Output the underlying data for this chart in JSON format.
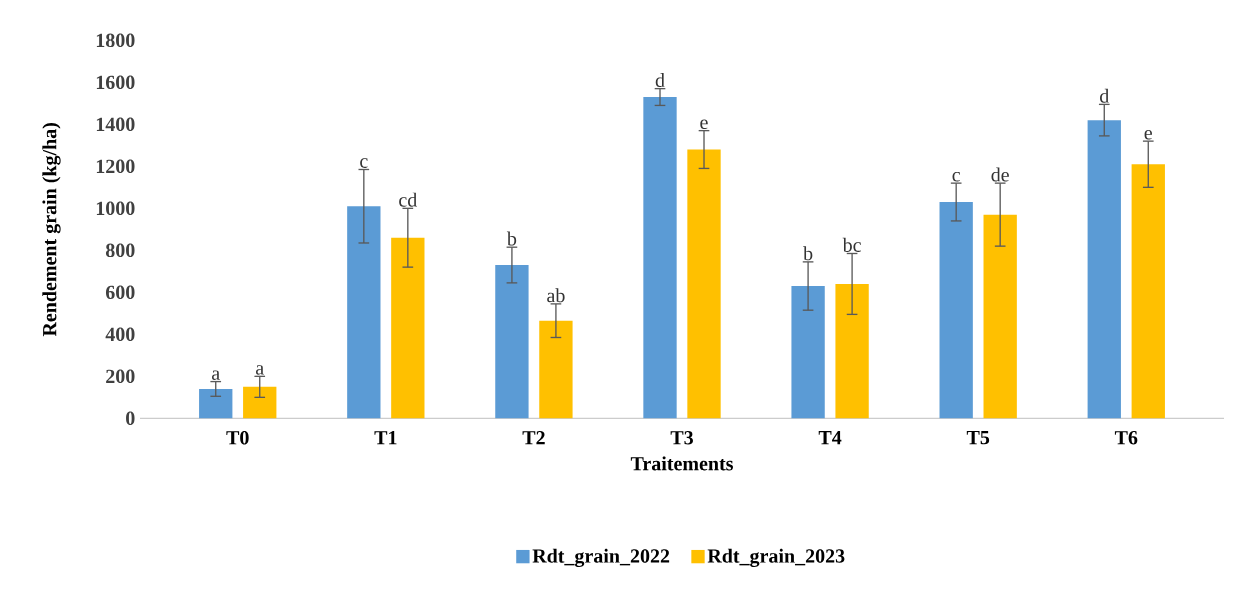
{
  "chart_data": {
    "type": "bar",
    "xlabel": "Traitements",
    "ylabel": "Rendement grain (kg/ha)",
    "categories": [
      "T0",
      "T1",
      "T2",
      "T3",
      "T4",
      "T5",
      "T6"
    ],
    "ylim": [
      0,
      1800
    ],
    "yticks": [
      0,
      200,
      400,
      600,
      800,
      1000,
      1200,
      1400,
      1600,
      1800
    ],
    "legend": "bottom",
    "series": [
      {
        "name": "Rdt_grain_2022",
        "color": "#5b9bd5",
        "values": [
          140,
          1010,
          730,
          1530,
          630,
          1030,
          1420
        ],
        "errors": [
          35,
          175,
          85,
          40,
          115,
          90,
          75
        ],
        "value_labels": [
          "a",
          "c",
          "b",
          "d",
          "b",
          "c",
          "d"
        ]
      },
      {
        "name": "Rdt_grain_2023",
        "color": "#ffc000",
        "values": [
          150,
          860,
          465,
          1280,
          640,
          970,
          1210
        ],
        "errors": [
          50,
          140,
          80,
          90,
          145,
          150,
          110
        ],
        "value_labels": [
          "a",
          "cd",
          "ab",
          "e",
          "bc",
          "de",
          "e"
        ]
      }
    ]
  }
}
